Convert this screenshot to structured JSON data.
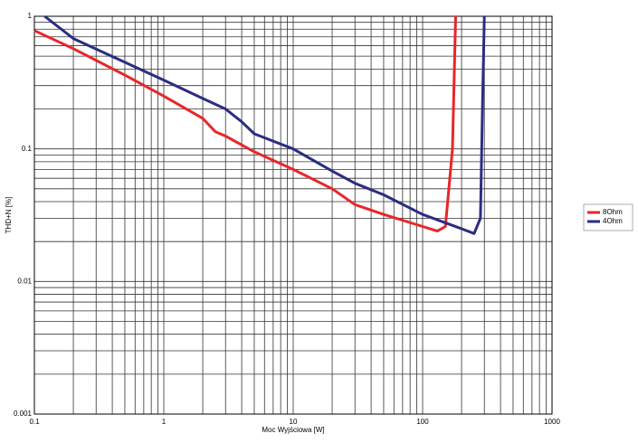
{
  "chart_data": {
    "type": "line",
    "x_label": "Moc Wyjściowa [W]",
    "y_label": "THD+N [%]",
    "xlog": true,
    "ylog": true,
    "grid": true,
    "legend": "right",
    "xlim": [
      0.1,
      1000
    ],
    "xticks": [
      0.1,
      1,
      10,
      100,
      1000
    ],
    "ylim": [
      0.001,
      1
    ],
    "yticks": [
      0.001,
      0.01,
      0.1,
      1
    ],
    "series": [
      {
        "name": "8Ohm",
        "color": "#e8262a",
        "x": [
          0.1,
          0.2,
          0.5,
          1,
          2,
          2.5,
          3,
          5,
          10,
          20,
          30,
          50,
          100,
          130,
          150,
          170,
          180
        ],
        "values": [
          0.78,
          0.57,
          0.36,
          0.25,
          0.17,
          0.135,
          0.125,
          0.095,
          0.07,
          0.05,
          0.038,
          0.032,
          0.026,
          0.024,
          0.026,
          0.1,
          1
        ]
      },
      {
        "name": "4Ohm",
        "color": "#2b2d82",
        "x": [
          0.12,
          0.2,
          0.5,
          1,
          2,
          3,
          4,
          5,
          10,
          20,
          30,
          50,
          100,
          200,
          250,
          280,
          290,
          300
        ],
        "values": [
          1,
          0.68,
          0.45,
          0.33,
          0.24,
          0.2,
          0.16,
          0.13,
          0.1,
          0.068,
          0.055,
          0.045,
          0.032,
          0.025,
          0.023,
          0.03,
          0.2,
          1
        ]
      }
    ]
  }
}
